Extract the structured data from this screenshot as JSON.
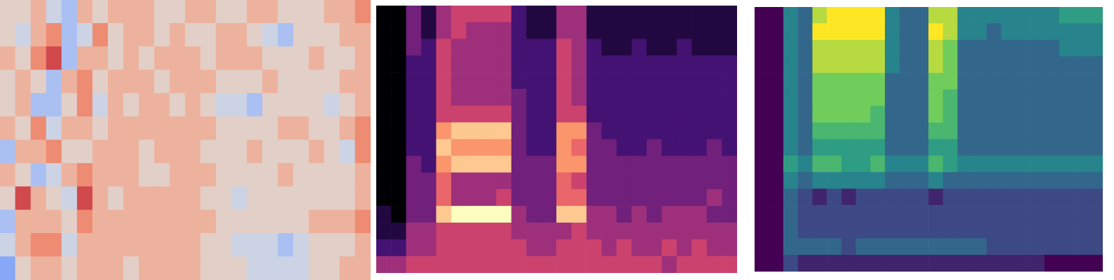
{
  "chart_data": [
    {
      "type": "heatmap",
      "color": "coolwarm",
      "zlim": [
        0,
        9
      ],
      "tick_labels": false,
      "cells": [
        [
          5,
          5,
          6,
          4,
          3,
          6,
          5,
          6,
          6,
          6,
          5,
          5,
          6,
          6,
          5,
          5,
          6,
          6,
          5,
          5,
          5,
          6,
          6,
          7
        ],
        [
          5,
          4,
          6,
          7,
          3,
          4,
          7,
          5,
          6,
          6,
          5,
          6,
          5,
          5,
          6,
          6,
          5,
          4,
          3,
          5,
          5,
          5,
          6,
          6
        ],
        [
          6,
          5,
          7,
          8,
          3,
          6,
          6,
          5,
          6,
          5,
          6,
          6,
          6,
          5,
          6,
          6,
          6,
          5,
          5,
          5,
          6,
          5,
          5,
          6
        ],
        [
          5,
          6,
          5,
          3,
          6,
          7,
          5,
          6,
          6,
          6,
          5,
          6,
          6,
          6,
          5,
          5,
          5,
          6,
          5,
          5,
          5,
          5,
          6,
          6
        ],
        [
          5,
          6,
          3,
          3,
          5,
          7,
          4,
          6,
          5,
          6,
          6,
          5,
          6,
          5,
          4,
          4,
          3,
          5,
          5,
          5,
          5,
          4,
          5,
          6
        ],
        [
          6,
          5,
          7,
          4,
          6,
          6,
          5,
          6,
          6,
          6,
          6,
          6,
          6,
          6,
          5,
          5,
          5,
          5,
          6,
          6,
          5,
          5,
          6,
          7
        ],
        [
          3,
          6,
          6,
          7,
          5,
          5,
          6,
          6,
          6,
          5,
          6,
          6,
          6,
          5,
          5,
          5,
          6,
          5,
          5,
          5,
          6,
          5,
          4,
          7
        ],
        [
          6,
          5,
          3,
          4,
          6,
          7,
          6,
          6,
          6,
          5,
          5,
          6,
          6,
          6,
          5,
          5,
          5,
          5,
          6,
          5,
          5,
          5,
          5,
          6
        ],
        [
          5,
          8,
          6,
          5,
          4,
          8,
          6,
          5,
          6,
          6,
          6,
          6,
          6,
          5,
          5,
          4,
          5,
          5,
          5,
          5,
          5,
          5,
          5,
          6
        ],
        [
          3,
          6,
          6,
          6,
          5,
          7,
          6,
          6,
          6,
          6,
          6,
          6,
          6,
          6,
          5,
          5,
          5,
          5,
          5,
          5,
          6,
          6,
          6,
          7
        ],
        [
          4,
          6,
          7,
          7,
          4,
          6,
          6,
          6,
          6,
          6,
          6,
          6,
          6,
          5,
          5,
          4,
          4,
          4,
          3,
          4,
          5,
          5,
          5,
          6
        ],
        [
          2,
          5,
          6,
          6,
          5,
          6,
          6,
          6,
          5,
          6,
          6,
          6,
          6,
          5,
          5,
          5,
          4,
          4,
          4,
          4,
          5,
          5,
          6,
          6
        ]
      ]
    },
    {
      "type": "heatmap",
      "color": "magma",
      "zlim": [
        0,
        9
      ],
      "tick_labels": false,
      "cells": [
        [
          0,
          0,
          3,
          1,
          4,
          5,
          5,
          5,
          5,
          2,
          1,
          1,
          4,
          4,
          1,
          1,
          1,
          1,
          1,
          1,
          1,
          1,
          1,
          1
        ],
        [
          0,
          0,
          3,
          1,
          4,
          5,
          4,
          4,
          4,
          2,
          1,
          1,
          4,
          4,
          1,
          1,
          1,
          1,
          1,
          1,
          1,
          1,
          1,
          1
        ],
        [
          0,
          0,
          3,
          2,
          5,
          4,
          4,
          4,
          4,
          2,
          2,
          2,
          5,
          4,
          2,
          1,
          1,
          2,
          1,
          1,
          2,
          1,
          1,
          1
        ],
        [
          0,
          0,
          2,
          2,
          5,
          4,
          4,
          4,
          4,
          2,
          2,
          2,
          5,
          4,
          2,
          2,
          2,
          2,
          2,
          2,
          2,
          2,
          2,
          2
        ],
        [
          0,
          0,
          2,
          2,
          5,
          4,
          4,
          4,
          4,
          2,
          2,
          2,
          5,
          4,
          2,
          2,
          2,
          2,
          2,
          2,
          2,
          2,
          2,
          2
        ],
        [
          0,
          0,
          2,
          2,
          5,
          4,
          4,
          4,
          4,
          3,
          2,
          2,
          5,
          4,
          2,
          2,
          2,
          2,
          2,
          2,
          2,
          2,
          2,
          2
        ],
        [
          0,
          0,
          2,
          2,
          5,
          5,
          5,
          5,
          5,
          3,
          2,
          2,
          5,
          5,
          2,
          2,
          2,
          2,
          2,
          2,
          2,
          2,
          2,
          2
        ],
        [
          0,
          0,
          2,
          2,
          7,
          8,
          8,
          8,
          8,
          3,
          2,
          2,
          7,
          7,
          3,
          2,
          2,
          2,
          2,
          2,
          2,
          2,
          2,
          2
        ],
        [
          0,
          0,
          2,
          2,
          8,
          7,
          7,
          7,
          7,
          3,
          2,
          2,
          7,
          6,
          3,
          3,
          2,
          2,
          3,
          2,
          2,
          2,
          3,
          2
        ],
        [
          0,
          0,
          3,
          2,
          7,
          8,
          8,
          8,
          8,
          3,
          3,
          3,
          7,
          7,
          3,
          3,
          3,
          3,
          3,
          3,
          3,
          3,
          3,
          3
        ],
        [
          0,
          0,
          3,
          3,
          6,
          4,
          4,
          4,
          4,
          3,
          3,
          3,
          6,
          5,
          3,
          3,
          3,
          3,
          3,
          3,
          3,
          3,
          3,
          3
        ],
        [
          0,
          0,
          3,
          3,
          6,
          4,
          4,
          4,
          5,
          3,
          3,
          3,
          6,
          6,
          3,
          3,
          3,
          3,
          3,
          3,
          3,
          3,
          4,
          3
        ],
        [
          1,
          0,
          3,
          3,
          8,
          9,
          9,
          9,
          9,
          4,
          3,
          3,
          8,
          8,
          4,
          4,
          3,
          4,
          3,
          4,
          4,
          4,
          3,
          3
        ],
        [
          1,
          1,
          4,
          4,
          5,
          5,
          5,
          5,
          5,
          4,
          4,
          4,
          4,
          5,
          4,
          4,
          4,
          4,
          4,
          4,
          4,
          4,
          4,
          4
        ],
        [
          2,
          2,
          4,
          4,
          5,
          5,
          5,
          5,
          5,
          5,
          4,
          4,
          5,
          5,
          5,
          4,
          5,
          4,
          4,
          5,
          4,
          5,
          4,
          4
        ],
        [
          4,
          4,
          5,
          5,
          5,
          5,
          5,
          5,
          5,
          5,
          5,
          5,
          5,
          5,
          5,
          5,
          5,
          5,
          5,
          4,
          5,
          5,
          5,
          5
        ]
      ]
    },
    {
      "type": "heatmap",
      "color": "viridis",
      "zlim": [
        0,
        9
      ],
      "tick_labels": false,
      "cells": [
        [
          0,
          0,
          4,
          3,
          8,
          9,
          9,
          9,
          9,
          4,
          3,
          3,
          8,
          8,
          4,
          4,
          4,
          4,
          4,
          4,
          4,
          5,
          5,
          5
        ],
        [
          0,
          0,
          4,
          3,
          9,
          9,
          9,
          9,
          9,
          4,
          3,
          3,
          9,
          8,
          4,
          4,
          3,
          4,
          4,
          4,
          4,
          4,
          4,
          4
        ],
        [
          0,
          0,
          4,
          3,
          8,
          8,
          8,
          8,
          8,
          4,
          3,
          3,
          8,
          7,
          3,
          3,
          3,
          3,
          3,
          3,
          3,
          4,
          4,
          4
        ],
        [
          0,
          0,
          4,
          3,
          8,
          8,
          8,
          8,
          8,
          4,
          3,
          3,
          8,
          7,
          3,
          3,
          3,
          3,
          3,
          3,
          3,
          3,
          3,
          3
        ],
        [
          0,
          0,
          4,
          3,
          7,
          7,
          7,
          7,
          7,
          3,
          3,
          3,
          7,
          7,
          3,
          3,
          3,
          3,
          3,
          3,
          3,
          3,
          3,
          3
        ],
        [
          0,
          0,
          4,
          3,
          7,
          7,
          7,
          7,
          7,
          3,
          3,
          3,
          7,
          6,
          3,
          3,
          3,
          3,
          3,
          3,
          3,
          3,
          3,
          3
        ],
        [
          0,
          0,
          4,
          3,
          7,
          7,
          7,
          7,
          6,
          3,
          3,
          3,
          7,
          6,
          3,
          3,
          3,
          3,
          3,
          3,
          3,
          3,
          3,
          3
        ],
        [
          0,
          0,
          4,
          3,
          6,
          6,
          6,
          6,
          6,
          3,
          3,
          3,
          6,
          6,
          3,
          3,
          3,
          3,
          3,
          3,
          3,
          3,
          3,
          3
        ],
        [
          0,
          0,
          4,
          3,
          5,
          5,
          5,
          5,
          5,
          3,
          3,
          3,
          5,
          5,
          3,
          3,
          3,
          3,
          3,
          3,
          3,
          3,
          3,
          3
        ],
        [
          0,
          0,
          5,
          4,
          6,
          6,
          5,
          5,
          6,
          4,
          4,
          4,
          6,
          5,
          4,
          4,
          4,
          4,
          4,
          4,
          4,
          4,
          4,
          4
        ],
        [
          0,
          0,
          4,
          3,
          4,
          4,
          4,
          4,
          4,
          3,
          3,
          3,
          4,
          3,
          3,
          3,
          3,
          3,
          3,
          3,
          3,
          3,
          3,
          3
        ],
        [
          0,
          0,
          3,
          2,
          1,
          2,
          1,
          2,
          2,
          2,
          2,
          2,
          1,
          2,
          2,
          2,
          2,
          2,
          2,
          2,
          2,
          2,
          2,
          2
        ],
        [
          0,
          0,
          3,
          2,
          2,
          2,
          2,
          2,
          2,
          2,
          2,
          2,
          2,
          2,
          2,
          2,
          2,
          2,
          2,
          2,
          2,
          2,
          2,
          2
        ],
        [
          0,
          0,
          3,
          2,
          2,
          2,
          2,
          2,
          2,
          2,
          2,
          2,
          2,
          2,
          2,
          2,
          2,
          2,
          2,
          2,
          2,
          2,
          2,
          2
        ],
        [
          0,
          0,
          3,
          3,
          3,
          3,
          2,
          3,
          3,
          3,
          3,
          3,
          3,
          3,
          3,
          3,
          2,
          2,
          2,
          2,
          2,
          2,
          2,
          2
        ],
        [
          0,
          0,
          2,
          1,
          1,
          1,
          1,
          1,
          1,
          1,
          1,
          1,
          1,
          1,
          1,
          1,
          1,
          1,
          1,
          1,
          0,
          0,
          0,
          0
        ]
      ]
    }
  ]
}
